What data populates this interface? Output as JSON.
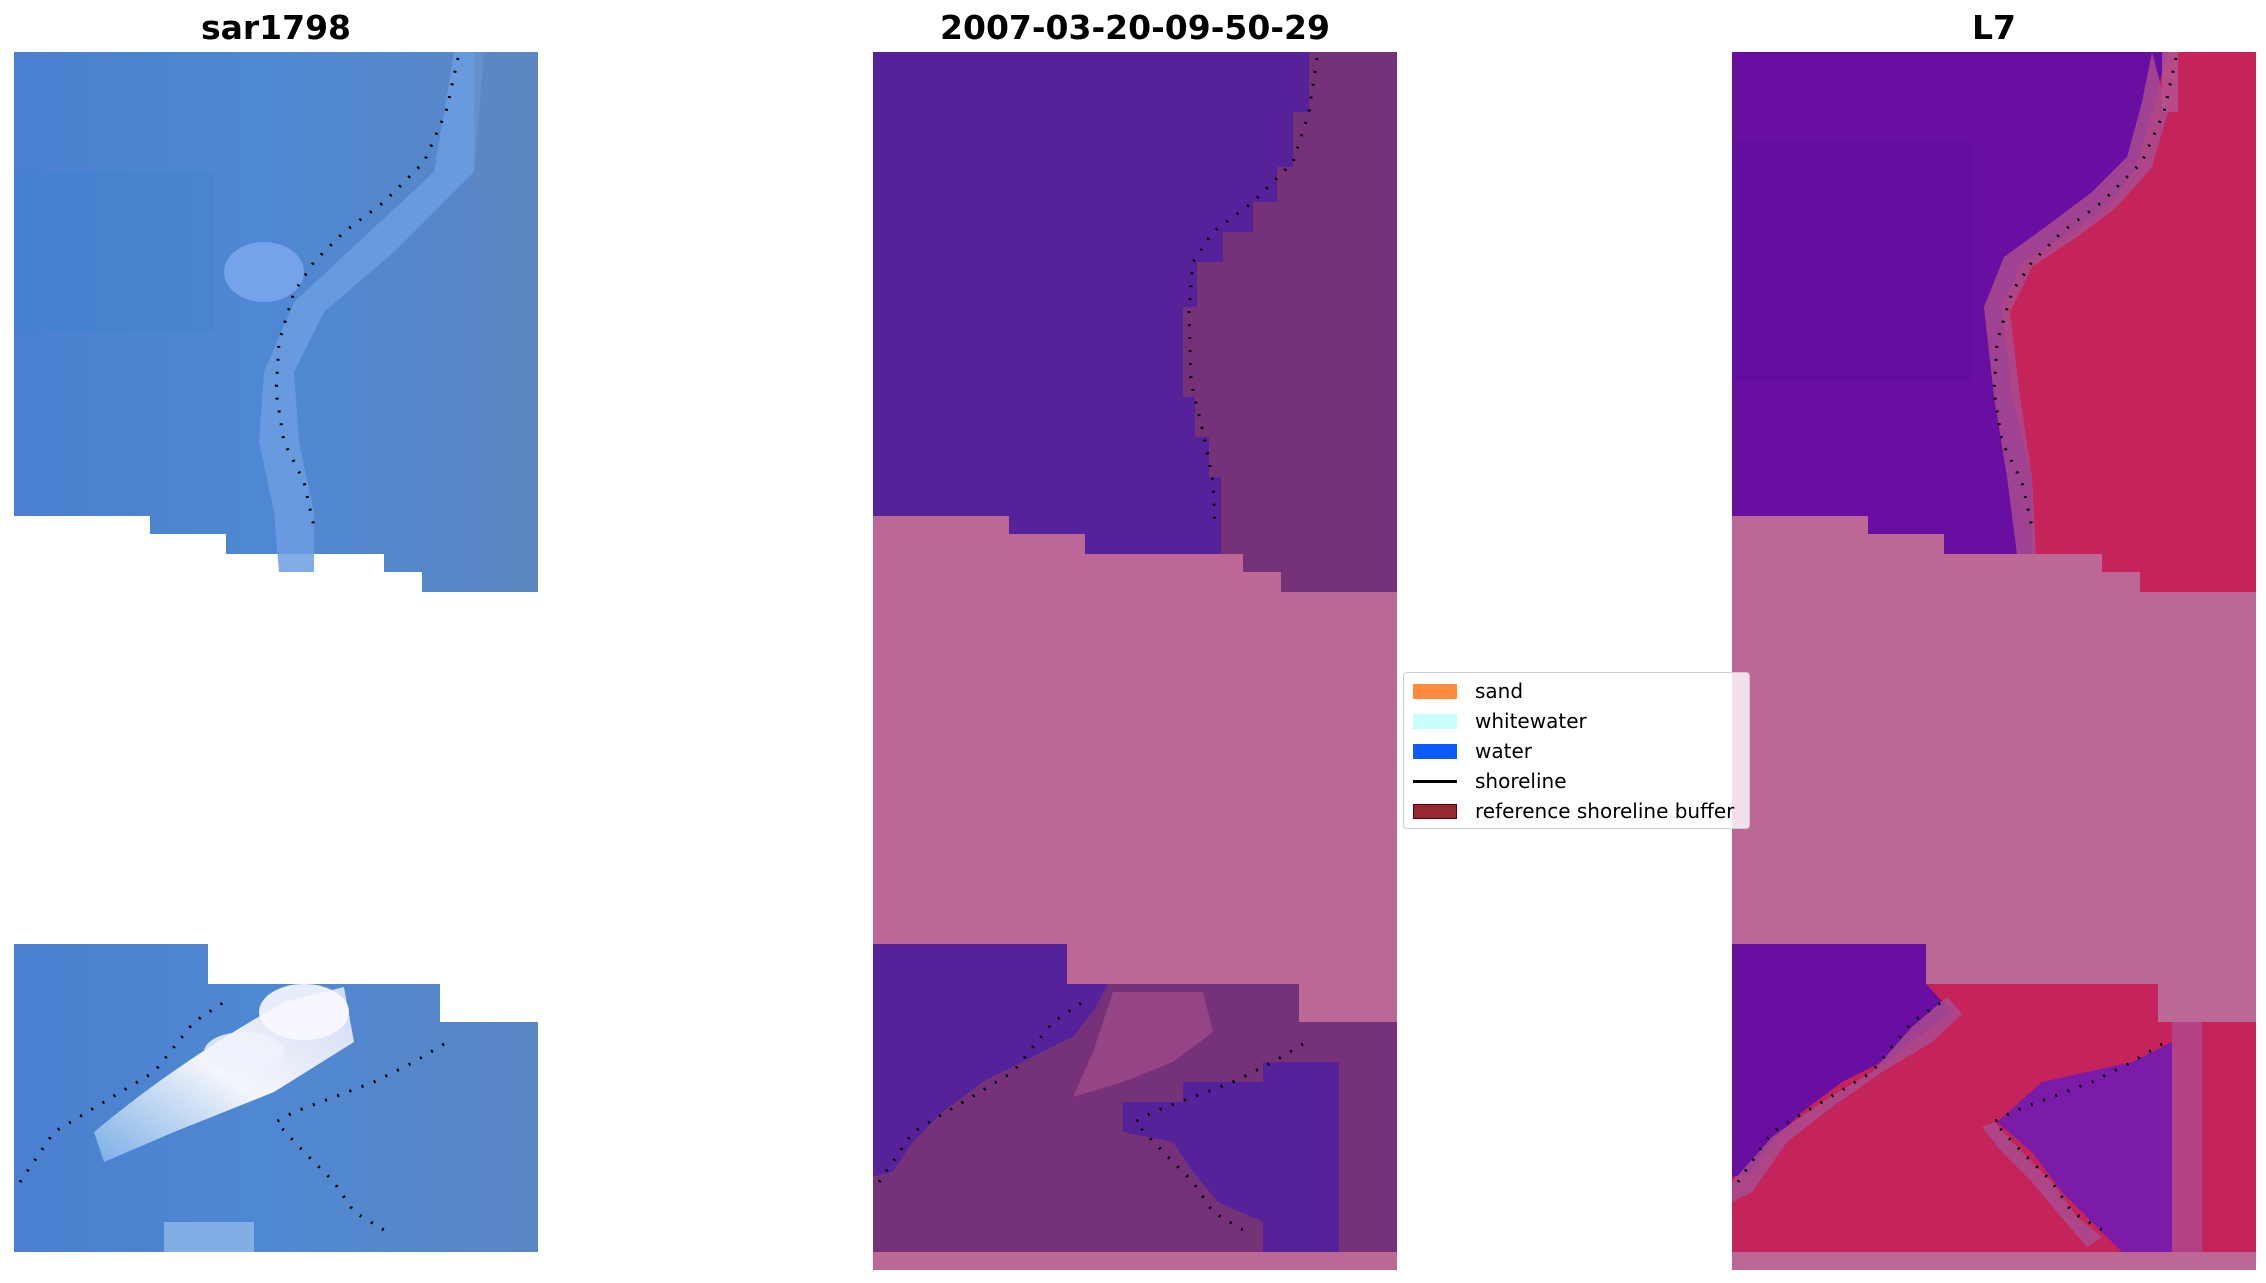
{
  "panels": [
    {
      "title": "sar1798",
      "image": "sar1798 RGB satellite image with detected shoreline"
    },
    {
      "title": "2007-03-20-09-50-29",
      "image": "classified image overlaid with reference shoreline buffer"
    },
    {
      "title": "L7",
      "image": "MNDWI index image with detected shoreline"
    }
  ],
  "legend": {
    "items": [
      {
        "label": "sand",
        "type": "patch",
        "color": "#ff8c3c"
      },
      {
        "label": "whitewater",
        "type": "patch",
        "color": "#c8fff8"
      },
      {
        "label": "water",
        "type": "patch",
        "color": "#0a5aff"
      },
      {
        "label": "shoreline",
        "type": "line",
        "color": "#000000"
      },
      {
        "label": "reference shoreline buffer",
        "type": "patch",
        "color": "#962832",
        "edge": "#550000"
      }
    ]
  },
  "colors": {
    "rgb_water": "#4f85cc",
    "rgb_light": "#6fa4e8",
    "rgb_surf": "#f2f4fb",
    "class_water": "#56229a",
    "class_buffer": "#bc6795",
    "class_mixed": "#763278",
    "index_water": "#680ea0",
    "index_land": "#c4245a",
    "shoreline": "#000000"
  }
}
